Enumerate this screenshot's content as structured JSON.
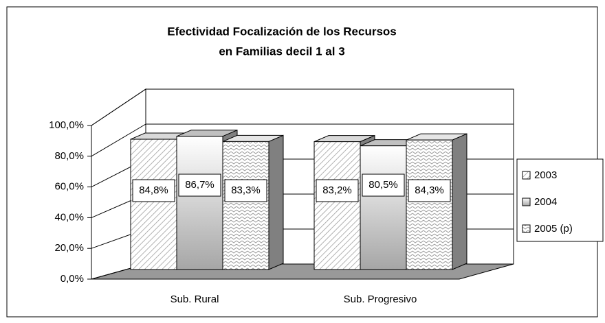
{
  "chart_data": {
    "type": "bar3d",
    "title": [
      "Efectividad Focalización de los Recursos",
      "en Familias decil 1 al 3"
    ],
    "categories": [
      "Sub. Rural",
      "Sub. Progresivo"
    ],
    "series": [
      {
        "name": "2003",
        "color": "#d9d9d9",
        "values": [
          84.8,
          83.2
        ],
        "value_labels": [
          "84,8%",
          "83,2%"
        ]
      },
      {
        "name": "2004",
        "color": "#c0c0c0",
        "values": [
          86.7,
          80.5
        ],
        "value_labels": [
          "86,7%",
          "80,5%"
        ]
      },
      {
        "name": "2005 (p)",
        "color": "#e6e6e6",
        "values": [
          83.3,
          84.3
        ],
        "value_labels": [
          "83,3%",
          "84,3%"
        ]
      }
    ],
    "ylim": [
      0,
      100
    ],
    "yticks": [
      {
        "value": 0,
        "label": "0,0%"
      },
      {
        "value": 20,
        "label": "20,0%"
      },
      {
        "value": 40,
        "label": "40,0%"
      },
      {
        "value": 60,
        "label": "60,0%"
      },
      {
        "value": 80,
        "label": "80,0%"
      },
      {
        "value": 100,
        "label": "100,0%"
      }
    ],
    "grid": true,
    "legend": "right"
  }
}
